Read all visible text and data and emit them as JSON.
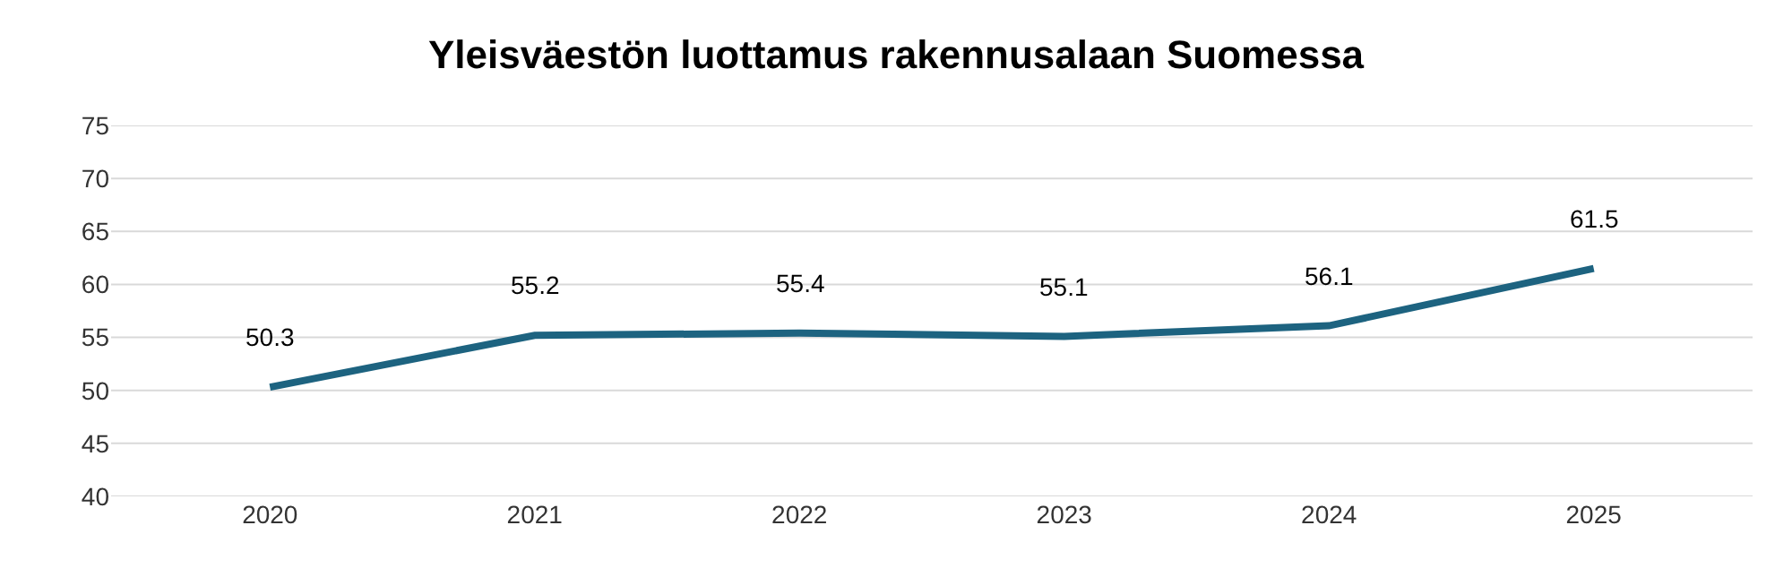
{
  "chart_data": {
    "type": "line",
    "title": "Yleisväestön luottamus rakennusalaan Suomessa",
    "categories": [
      "2020",
      "2021",
      "2022",
      "2023",
      "2024",
      "2025"
    ],
    "series": [
      {
        "color": "#1d6380",
        "values": [
          50.3,
          55.2,
          55.4,
          55.1,
          56.1,
          61.5
        ]
      }
    ],
    "ylim": [
      40,
      75
    ],
    "yticks": [
      40,
      45,
      50,
      55,
      60,
      65,
      70,
      75
    ],
    "grid": "y",
    "data_labels": true,
    "marker": "none",
    "line_style": "solid"
  }
}
